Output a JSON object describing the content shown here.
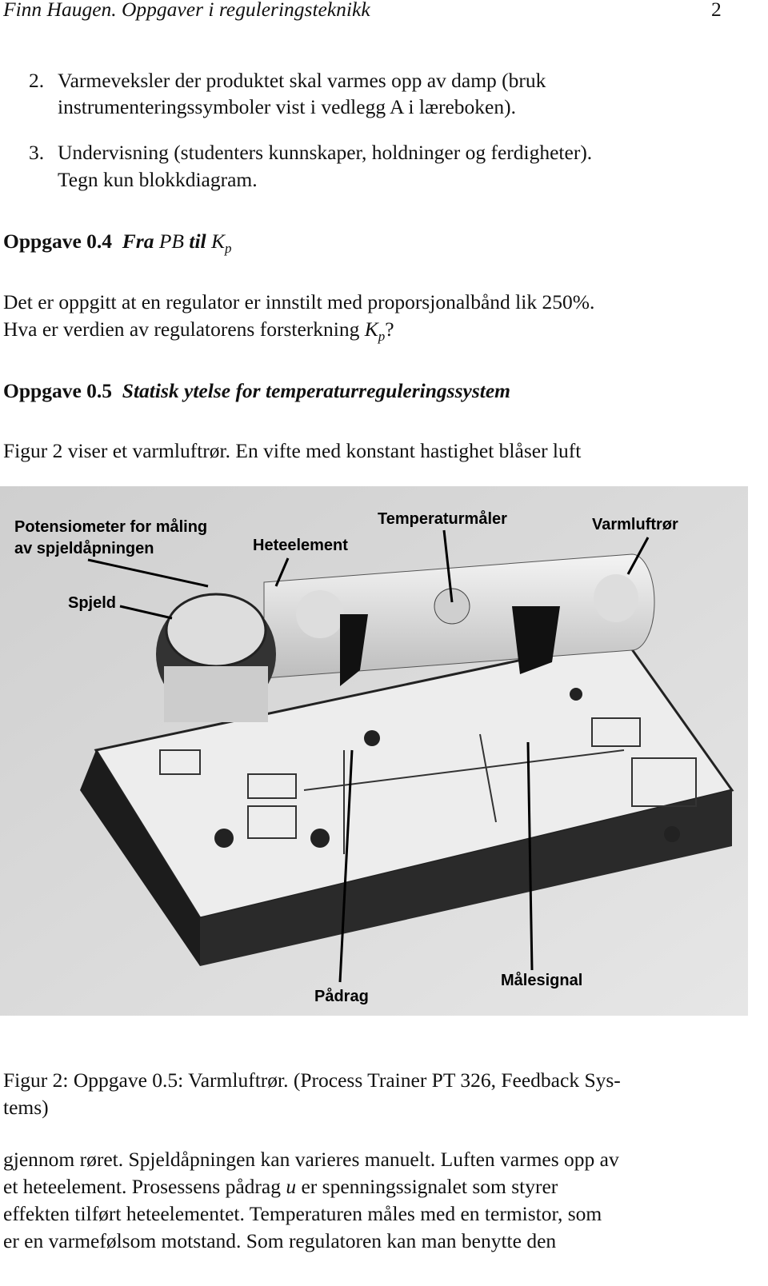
{
  "header": {
    "running_title": "Finn Haugen. Oppgaver i reguleringsteknikk",
    "page_number": "2"
  },
  "list_items": [
    {
      "number": "2.",
      "lines": [
        "Varmeveksler der produktet skal varmes opp av damp (bruk",
        "instrumenteringssymboler vist i vedlegg A i læreboken)."
      ]
    },
    {
      "number": "3.",
      "lines": [
        "Undervisning (studenters kunnskaper, holdninger og ferdigheter).",
        "Tegn kun blokkdiagram."
      ]
    }
  ],
  "task_0_4": {
    "label": "Oppgave 0.4",
    "title": [
      "Fra",
      "PB",
      "til",
      "K",
      "p"
    ],
    "text_line_1": "Det er oppgitt at en regulator er innstilt med proporsjonalbånd lik 250%.",
    "text_line_2": [
      "Hva er verdien av regulatorens forsterkning",
      "K",
      "p",
      "?"
    ]
  },
  "task_0_5": {
    "label": "Oppgave 0.5",
    "title": "Statisk ytelse for temperaturreguleringssystem",
    "text_line_1": "Figur 2 viser et varmluftrør. En vifte med konstant hastighet blåser luft"
  },
  "figure": {
    "labels": {
      "potentiometer": [
        "Potensiometer for måling",
        "av spjeldåpningen"
      ],
      "heating_element": "Heteelement",
      "temperature_sensor": "Temperaturmåler",
      "tube": "Varmluftrør",
      "damper": "Spjeld",
      "control_signal": "Pådrag",
      "measurement_signal": "Målesignal"
    },
    "caption_lines": [
      "Figur 2: Oppgave 0.5: Varmluftrør. (Process Trainer PT 326, Feedback Sys-",
      "tems)"
    ]
  },
  "body_lines": [
    [
      "gjennom røret. Spjeldåpningen kan varieres manuelt. Luften varmes opp av"
    ],
    [
      "et heteelement. Prosessens pådrag",
      "u",
      "er spenningssignalet som styrer"
    ],
    [
      "effekten tilført heteelementet. Temperaturen måles med en termistor, som"
    ],
    [
      "er en varmefølsom motstand. Som regulatoren kan man benytte den"
    ]
  ]
}
